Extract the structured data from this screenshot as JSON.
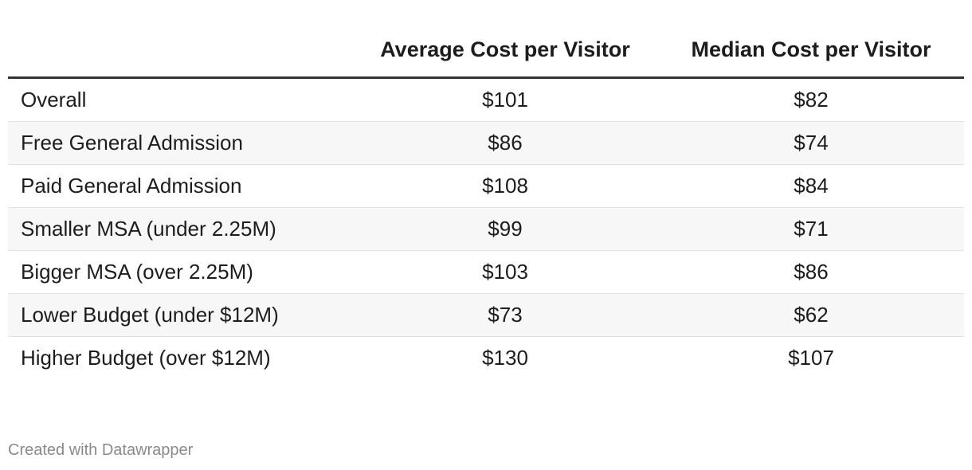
{
  "chart_data": {
    "type": "table",
    "columns": [
      "",
      "Average Cost per Visitor",
      "Median Cost per Visitor"
    ],
    "rows": [
      {
        "category": "Overall",
        "average": "$101",
        "median": "$82"
      },
      {
        "category": "Free General Admission",
        "average": "$86",
        "median": "$74"
      },
      {
        "category": "Paid General Admission",
        "average": "$108",
        "median": "$84"
      },
      {
        "category": "Smaller MSA (under 2.25M)",
        "average": "$99",
        "median": "$71"
      },
      {
        "category": "Bigger MSA (over 2.25M)",
        "average": "$103",
        "median": "$86"
      },
      {
        "category": "Lower Budget (under $12M)",
        "average": "$73",
        "median": "$62"
      },
      {
        "category": "Higher Budget (over $12M)",
        "average": "$130",
        "median": "$107"
      }
    ]
  },
  "footer": {
    "credit": "Created with Datawrapper"
  },
  "colors": {
    "header_rule": "#333333",
    "row_alt_bg": "#f7f7f7",
    "row_divider": "#e2e2e2",
    "footer_text": "#8a8a8a"
  }
}
